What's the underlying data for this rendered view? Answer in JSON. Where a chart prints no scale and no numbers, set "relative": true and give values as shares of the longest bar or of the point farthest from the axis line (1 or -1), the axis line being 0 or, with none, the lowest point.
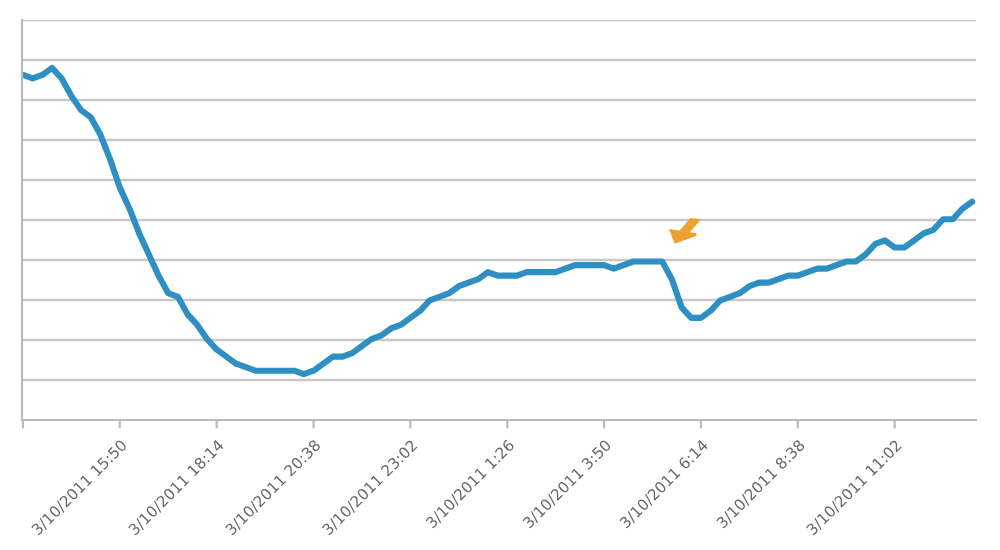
{
  "chart_data": {
    "type": "line",
    "relative": true,
    "grid": "y",
    "categories": [
      null,
      null,
      null,
      null,
      null,
      null,
      null,
      null,
      null,
      null,
      "3/10/2011 15:50",
      null,
      null,
      null,
      null,
      null,
      null,
      null,
      null,
      null,
      "3/10/2011 18:14",
      null,
      null,
      null,
      null,
      null,
      null,
      null,
      null,
      null,
      "3/10/2011 20:38",
      null,
      null,
      null,
      null,
      null,
      null,
      null,
      null,
      null,
      "3/10/2011 23:02",
      null,
      null,
      null,
      null,
      null,
      null,
      null,
      null,
      null,
      "3/10/2011 1:26",
      null,
      null,
      null,
      null,
      null,
      null,
      null,
      null,
      null,
      "3/10/2011 3:50",
      null,
      null,
      null,
      null,
      null,
      null,
      null,
      null,
      null,
      "3/10/2011 6:14",
      null,
      null,
      null,
      null,
      null,
      null,
      null,
      null,
      null,
      "3/10/2011 8:38",
      null,
      null,
      null,
      null,
      null,
      null,
      null,
      null,
      null,
      "3/10/2011 11:02",
      null,
      null,
      null,
      null,
      null,
      null,
      null,
      null
    ],
    "series": [
      {
        "color": "#2e8fc2",
        "values": [
          0.98,
          0.97,
          0.98,
          1,
          0.97,
          0.92,
          0.88,
          0.86,
          0.81,
          0.74,
          0.66,
          0.6,
          0.53,
          0.47,
          0.41,
          0.36,
          0.35,
          0.3,
          0.27,
          0.23,
          0.2,
          0.18,
          0.16,
          0.15,
          0.14,
          0.14,
          0.14,
          0.14,
          0.14,
          0.13,
          0.14,
          0.16,
          0.18,
          0.18,
          0.19,
          0.21,
          0.23,
          0.24,
          0.26,
          0.27,
          0.29,
          0.31,
          0.34,
          0.35,
          0.36,
          0.38,
          0.39,
          0.4,
          0.42,
          0.41,
          0.41,
          0.41,
          0.42,
          0.42,
          0.42,
          0.42,
          0.43,
          0.44,
          0.44,
          0.44,
          0.44,
          0.43,
          0.44,
          0.45,
          0.45,
          0.45,
          0.45,
          0.4,
          0.32,
          0.29,
          0.29,
          0.31,
          0.34,
          0.35,
          0.36,
          0.38,
          0.39,
          0.39,
          0.4,
          0.41,
          0.41,
          0.42,
          0.43,
          0.43,
          0.44,
          0.45,
          0.45,
          0.47,
          0.5,
          0.51,
          0.49,
          0.49,
          0.51,
          0.53,
          0.54,
          0.57,
          0.57,
          0.6,
          0.62
        ]
      }
    ]
  }
}
